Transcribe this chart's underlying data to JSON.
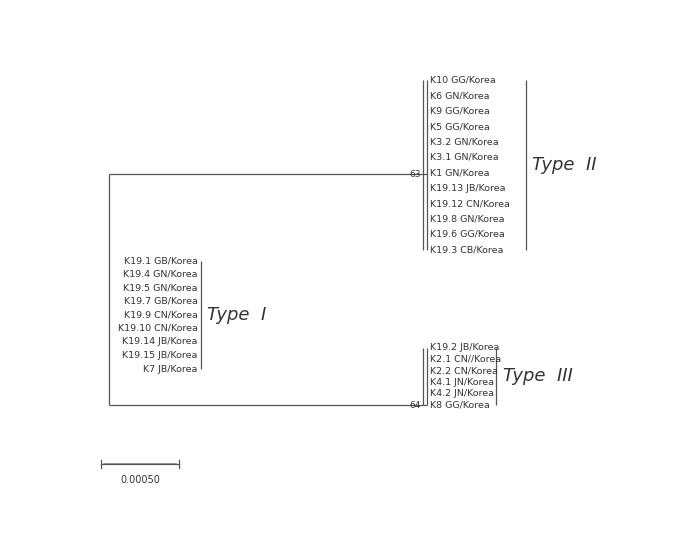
{
  "fig_width": 6.88,
  "fig_height": 5.54,
  "bg_color": "#ffffff",
  "line_color": "#555555",
  "text_color": "#333333",
  "label_fontsize": 6.8,
  "type_fontsize": 13,
  "bootstrap_fontsize": 6.5,
  "type2_taxa": [
    "K10 GG/Korea",
    "K6 GN/Korea",
    "K9 GG/Korea",
    "K5 GG/Korea",
    "K3.2 GN/Korea",
    "K3.1 GN/Korea",
    "K1 GN/Korea",
    "K19.13 JB/Korea",
    "K19.12 CN/Korea",
    "K19.8 GN/Korea",
    "K19.6 GG/Korea",
    "K19.3 CB/Korea"
  ],
  "type1_taxa": [
    "K19.1 GB/Korea",
    "K19.4 GN/Korea",
    "K19.5 GN/Korea",
    "K19.7 GB/Korea",
    "K19.9 CN/Korea",
    "K19.10 CN/Korea",
    "K19.14 JB/Korea",
    "K19.15 JB/Korea",
    "K7 JB/Korea"
  ],
  "type3_taxa": [
    "K19.2 JB/Korea",
    "K2.1 CN//Korea",
    "K2.2 CN/Korea",
    "K4.1 JN/Korea",
    "K4.2 JN/Korea",
    "K8 GG/Korea"
  ],
  "scalebar_label": "0.00050",
  "bootstrap_63": "63",
  "bootstrap_64": "64"
}
